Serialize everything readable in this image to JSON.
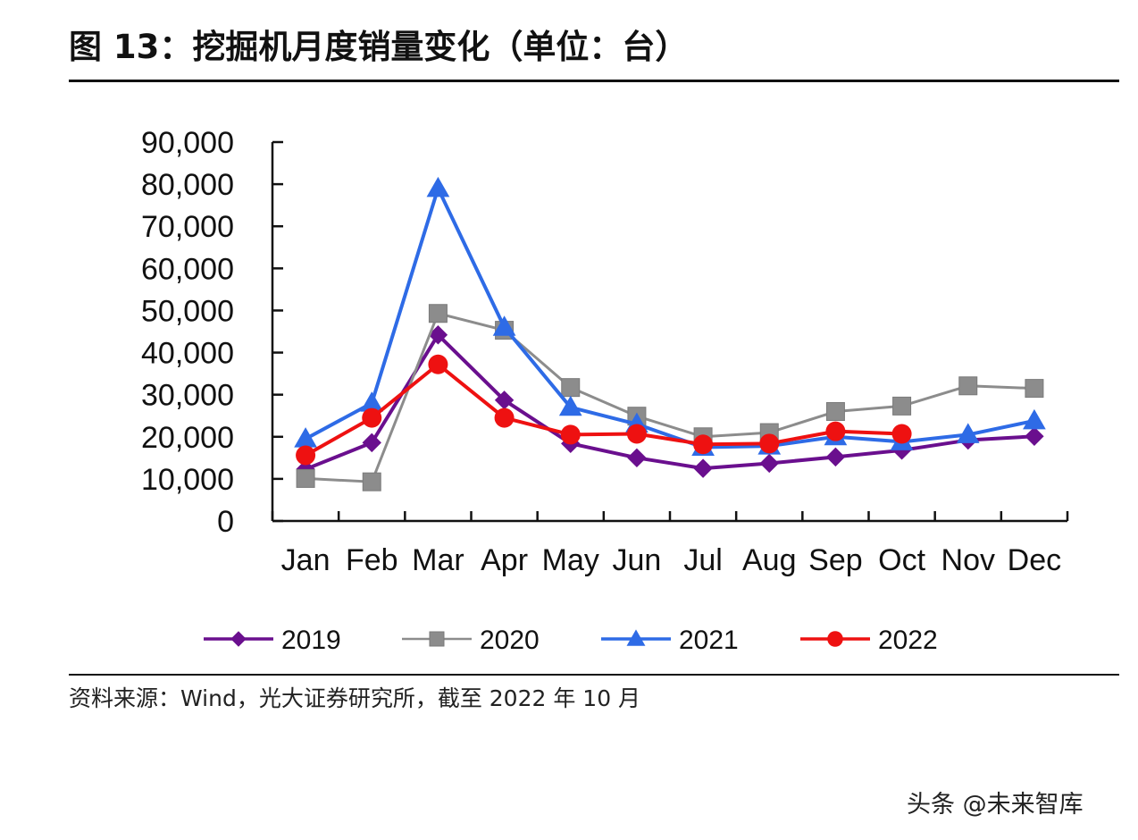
{
  "header": {
    "title": "图 13：挖掘机月度销量变化（单位：台）"
  },
  "footer": {
    "source": "资料来源：Wind，光大证券研究所，截至 2022 年 10 月",
    "watermark": "头条 @未来智库"
  },
  "chart_data": {
    "type": "line",
    "title": "挖掘机月度销量变化（单位：台）",
    "xlabel": "",
    "ylabel": "",
    "categories": [
      "Jan",
      "Feb",
      "Mar",
      "Apr",
      "May",
      "Jun",
      "Jul",
      "Aug",
      "Sep",
      "Oct",
      "Nov",
      "Dec"
    ],
    "ylim": [
      0,
      90000
    ],
    "yticks": [
      0,
      10000,
      20000,
      30000,
      40000,
      50000,
      60000,
      70000,
      80000,
      90000
    ],
    "ytick_labels": [
      "0",
      "10,000",
      "20,000",
      "30,000",
      "40,000",
      "50,000",
      "60,000",
      "70,000",
      "80,000",
      "90,000"
    ],
    "grid": false,
    "legend": "bottom",
    "series": [
      {
        "name": "2019",
        "color": "#6a0f8e",
        "marker": "diamond",
        "values": [
          12300,
          18600,
          44200,
          28700,
          18400,
          15000,
          12500,
          13700,
          15200,
          16800,
          19200,
          20100
        ]
      },
      {
        "name": "2020",
        "color": "#8c8c8c",
        "marker": "square",
        "values": [
          10100,
          9300,
          49300,
          45300,
          31700,
          24900,
          20000,
          21000,
          26000,
          27300,
          32100,
          31500
        ]
      },
      {
        "name": "2021",
        "color": "#2e6be6",
        "marker": "triangle",
        "values": [
          19500,
          28000,
          79000,
          46000,
          27000,
          23000,
          17500,
          17800,
          20000,
          18800,
          20500,
          23800
        ]
      },
      {
        "name": "2022",
        "color": "#ee1111",
        "marker": "circle",
        "values": [
          15600,
          24500,
          37200,
          24500,
          20500,
          20700,
          18200,
          18400,
          21300,
          20700,
          null,
          null
        ]
      }
    ]
  }
}
